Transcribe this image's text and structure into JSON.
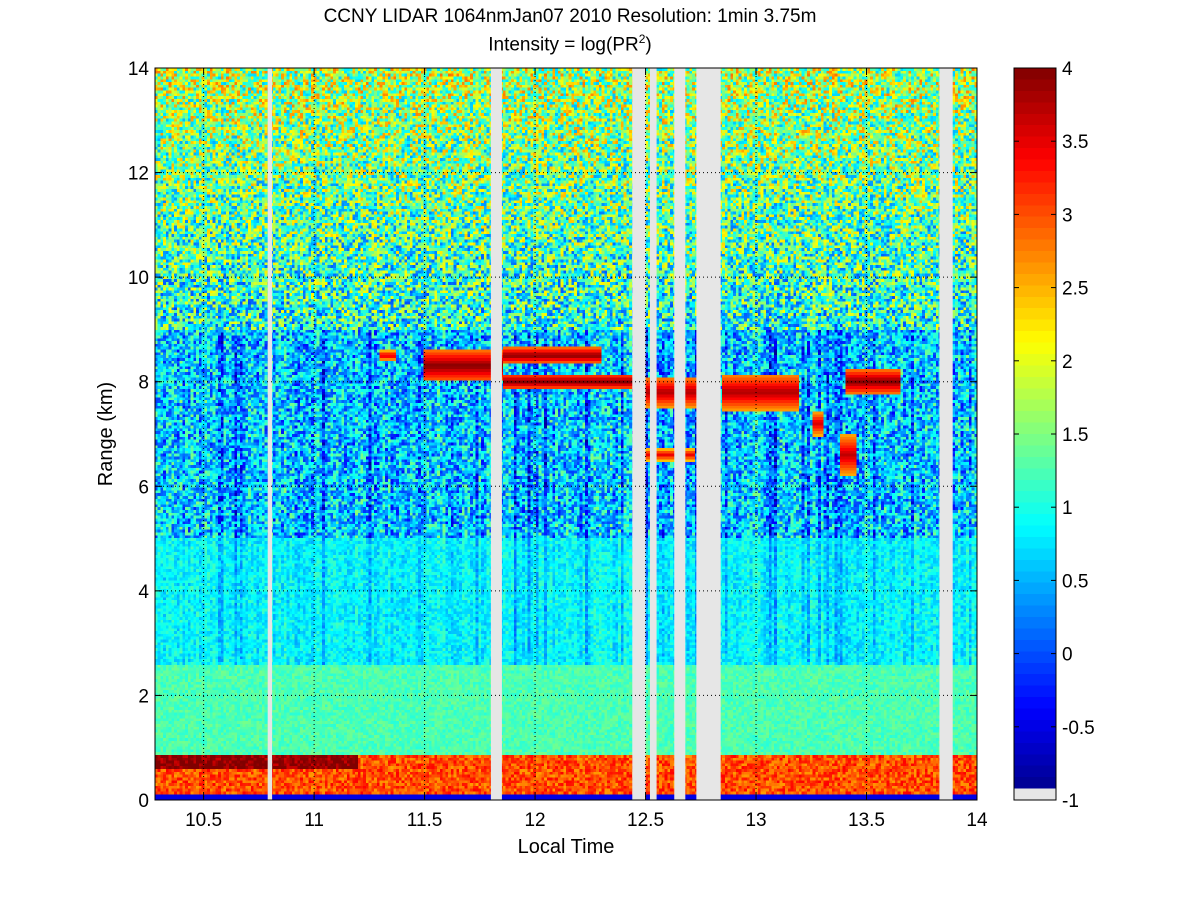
{
  "chart_data": {
    "type": "heatmap",
    "title": "CCNY LIDAR 1064nmJan07 2010 Resolution: 1min 3.75m",
    "subtitle_prefix": "Intensity = log(PR",
    "subtitle_sup": "2",
    "subtitle_suffix": ")",
    "xlabel": "Local Time",
    "ylabel": "Range (km)",
    "xlim": [
      10.28,
      14.0
    ],
    "ylim": [
      0,
      14
    ],
    "xticks": [
      10.5,
      11,
      11.5,
      12,
      12.5,
      13,
      13.5,
      14
    ],
    "xtick_labels": [
      "10.5",
      "11",
      "11.5",
      "12",
      "12.5",
      "13",
      "13.5",
      "14"
    ],
    "yticks": [
      0,
      2,
      4,
      6,
      8,
      10,
      12,
      14
    ],
    "ytick_labels": [
      "0",
      "2",
      "4",
      "6",
      "8",
      "10",
      "12",
      "14"
    ],
    "grid": true,
    "colorbar": {
      "min": -1,
      "max": 4,
      "ticks": [
        -1,
        -0.5,
        0,
        0.5,
        1,
        1.5,
        2,
        2.5,
        3,
        3.5,
        4
      ],
      "tick_labels": [
        "-1",
        "-0.5",
        "0",
        "0.5",
        "1",
        "1.5",
        "2",
        "2.5",
        "3",
        "3.5",
        "4"
      ],
      "colormap": "jet",
      "missing_color": "#e6e6e6"
    },
    "missing_data_times": [
      [
        10.79,
        10.81
      ],
      [
        11.8,
        11.85
      ],
      [
        12.44,
        12.5
      ],
      [
        12.52,
        12.55
      ],
      [
        12.63,
        12.68
      ],
      [
        12.73,
        12.84
      ],
      [
        13.83,
        13.89
      ]
    ],
    "features": {
      "boundary_layer_top_km": 0.85,
      "boundary_layer_intensity": 3.8,
      "cloud_layers": [
        {
          "t_start": 11.3,
          "t_end": 11.37,
          "range_km": 8.5,
          "thickness_km": 0.2,
          "intensity": 3.6
        },
        {
          "t_start": 11.5,
          "t_end": 11.85,
          "range_km": 8.3,
          "thickness_km": 0.6,
          "intensity": 4
        },
        {
          "t_start": 11.85,
          "t_end": 12.3,
          "range_km": 8.5,
          "thickness_km": 0.3,
          "intensity": 4
        },
        {
          "t_start": 11.85,
          "t_end": 12.45,
          "range_km": 8.0,
          "thickness_km": 0.3,
          "intensity": 4
        },
        {
          "t_start": 12.45,
          "t_end": 12.75,
          "range_km": 7.8,
          "thickness_km": 0.6,
          "intensity": 3.8
        },
        {
          "t_start": 12.5,
          "t_end": 12.72,
          "range_km": 6.6,
          "thickness_km": 0.25,
          "intensity": 3.5
        },
        {
          "t_start": 12.85,
          "t_end": 13.2,
          "range_km": 7.8,
          "thickness_km": 0.7,
          "intensity": 3.8
        },
        {
          "t_start": 13.26,
          "t_end": 13.3,
          "range_km": 7.2,
          "thickness_km": 0.5,
          "intensity": 3.6
        },
        {
          "t_start": 13.38,
          "t_end": 13.45,
          "range_km": 6.6,
          "thickness_km": 0.8,
          "intensity": 3.7
        },
        {
          "t_start": 13.4,
          "t_end": 13.65,
          "range_km": 8.0,
          "thickness_km": 0.45,
          "intensity": 4
        }
      ]
    }
  }
}
